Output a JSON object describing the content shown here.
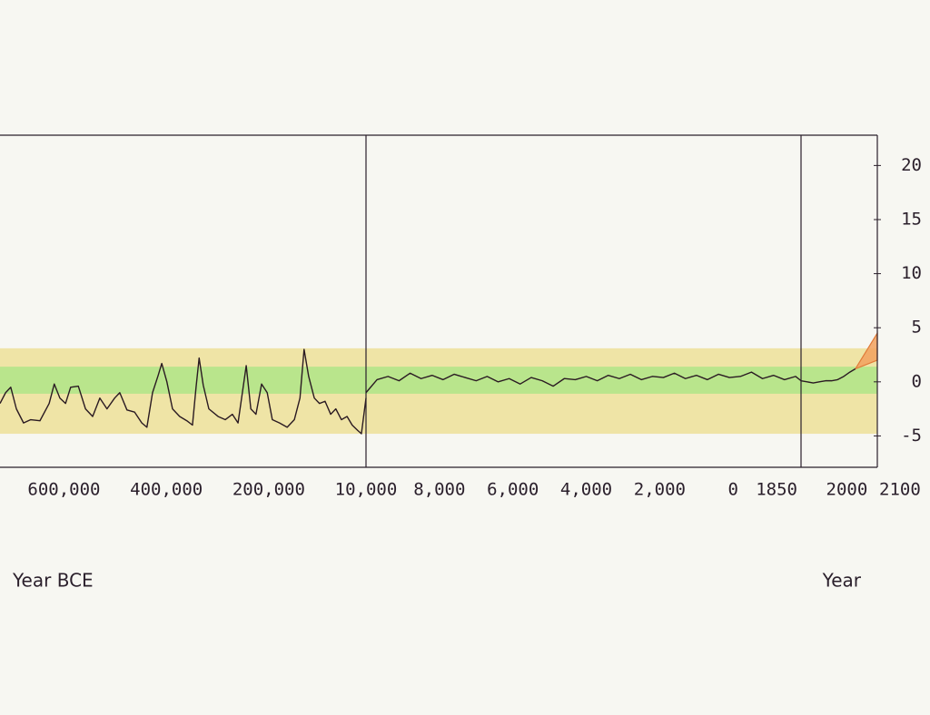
{
  "chart_data": {
    "type": "line",
    "ylim": [
      -7.9,
      22.8
    ],
    "yticks": [
      20,
      15,
      10,
      5,
      0,
      -5
    ],
    "line_color": "#2a1a22",
    "bands": [
      {
        "range": [
          -4.8,
          3.1
        ],
        "color": "#efe4a6"
      },
      {
        "range": [
          -1.1,
          1.4
        ],
        "color": "#b9e58c"
      }
    ],
    "panels": [
      {
        "xlabel": "Year BCE",
        "xlim": [
          725000,
          10000
        ],
        "xticks": [
          {
            "value": 600000,
            "label": "600,000"
          },
          {
            "value": 400000,
            "label": "400,000"
          },
          {
            "value": 200000,
            "label": "200,000"
          },
          {
            "value": 10000,
            "label": "10,000"
          }
        ],
        "x": [
          725000,
          714000,
          704000,
          693000,
          679000,
          665000,
          647000,
          629000,
          619000,
          608000,
          597000,
          587000,
          572000,
          558000,
          544000,
          530000,
          516000,
          501000,
          491000,
          477000,
          462000,
          448000,
          438000,
          427000,
          416000,
          409000,
          399000,
          388000,
          374000,
          360000,
          349000,
          342000,
          336000,
          328000,
          317000,
          299000,
          285000,
          271000,
          260000,
          250000,
          244000,
          235000,
          225000,
          214000,
          203000,
          193000,
          179000,
          164000,
          150000,
          139000,
          131000,
          122000,
          111000,
          101000,
          90000,
          79000,
          69000,
          58000,
          47000,
          37000,
          26000,
          19000,
          10000
        ],
        "values": [
          -2.0,
          -1.0,
          -0.5,
          -2.5,
          -3.8,
          -3.5,
          -3.6,
          -2.0,
          -0.2,
          -1.5,
          -2.0,
          -0.5,
          -0.4,
          -2.5,
          -3.2,
          -1.5,
          -2.5,
          -1.5,
          -1.0,
          -2.6,
          -2.8,
          -3.8,
          -4.2,
          -1.0,
          0.6,
          1.7,
          0.0,
          -2.5,
          -3.2,
          -3.6,
          -4.0,
          -0.5,
          2.2,
          -0.3,
          -2.5,
          -3.2,
          -3.5,
          -3.0,
          -3.8,
          -0.5,
          1.5,
          -2.5,
          -3.0,
          -0.2,
          -1.0,
          -3.5,
          -3.8,
          -4.2,
          -3.5,
          -1.5,
          3.0,
          0.5,
          -1.5,
          -2.0,
          -1.8,
          -3.0,
          -2.5,
          -3.5,
          -3.2,
          -4.0,
          -4.5,
          -4.8,
          -1.5
        ]
      },
      {
        "xlim": [
          -10000,
          1850
        ],
        "xticks": [
          {
            "value": -8000,
            "label": "8,000"
          },
          {
            "value": -6000,
            "label": "6,000"
          },
          {
            "value": -4000,
            "label": "4,000"
          },
          {
            "value": -2000,
            "label": "2,000"
          },
          0
        ],
        "x": [
          -10000,
          -9700,
          -9400,
          -9100,
          -8800,
          -8500,
          -8200,
          -7900,
          -7600,
          -7300,
          -7000,
          -6700,
          -6400,
          -6100,
          -5800,
          -5500,
          -5200,
          -4900,
          -4600,
          -4300,
          -4000,
          -3700,
          -3400,
          -3100,
          -2800,
          -2500,
          -2200,
          -1900,
          -1600,
          -1300,
          -1000,
          -700,
          -400,
          -100,
          200,
          500,
          800,
          1100,
          1400,
          1700,
          1850
        ],
        "values": [
          -1.0,
          0.2,
          0.5,
          0.1,
          0.8,
          0.3,
          0.6,
          0.2,
          0.7,
          0.4,
          0.1,
          0.5,
          0.0,
          0.3,
          -0.2,
          0.4,
          0.1,
          -0.4,
          0.3,
          0.2,
          0.5,
          0.1,
          0.6,
          0.3,
          0.7,
          0.2,
          0.5,
          0.4,
          0.8,
          0.3,
          0.6,
          0.2,
          0.7,
          0.4,
          0.5,
          0.9,
          0.3,
          0.6,
          0.2,
          0.5,
          0.1
        ]
      },
      {
        "xlabel": "Year",
        "xlim": [
          1850,
          2100
        ],
        "xticks": [
          1850,
          2000,
          2100
        ],
        "x": [
          1850,
          1870,
          1890,
          1910,
          1930,
          1950,
          1970,
          1990,
          2010,
          2028
        ],
        "values": [
          0.1,
          0.0,
          -0.1,
          0.0,
          0.1,
          0.1,
          0.2,
          0.5,
          0.9,
          1.2
        ],
        "projection": {
          "x": [
            2028,
            2100
          ],
          "upper": [
            1.2,
            4.5
          ],
          "lower": [
            1.2,
            2.0
          ],
          "color": "#f2a15e",
          "edge": "#e07b39"
        }
      }
    ]
  }
}
